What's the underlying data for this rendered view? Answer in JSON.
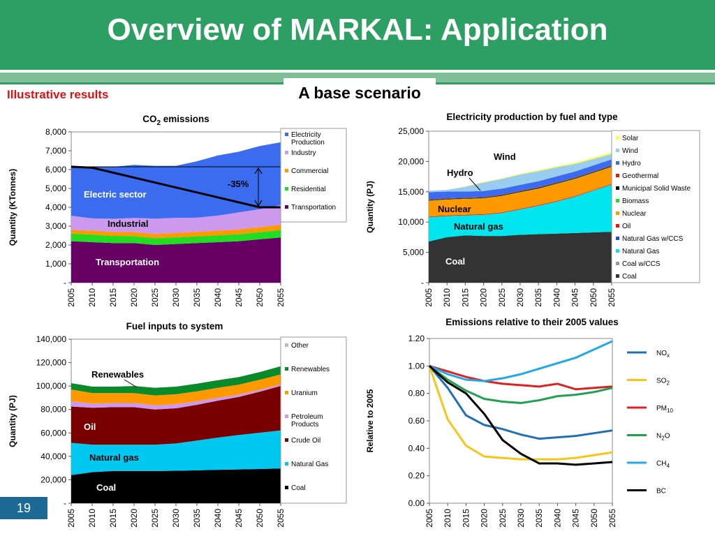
{
  "slide": {
    "title": "Overview of MARKAL: Application",
    "subtitle": "Illustrative results",
    "scenario": "A base scenario",
    "page_number": "19"
  },
  "colors": {
    "header_green": "#2e9f62",
    "subtitle_red": "#e01010",
    "page_badge_blue": "#1d6a96"
  },
  "chart_data": [
    {
      "id": "co2",
      "type": "area",
      "title": "CO",
      "title_sub": "2",
      "title_rest": " emissions",
      "ylabel": "Quantity (KTonnes)",
      "x": [
        "2005",
        "2010",
        "2015",
        "2020",
        "2025",
        "2030",
        "2035",
        "2040",
        "2045",
        "2050",
        "2055"
      ],
      "ylim": [
        0,
        8000
      ],
      "yticks": [
        0,
        1000,
        2000,
        3000,
        4000,
        5000,
        6000,
        7000,
        8000
      ],
      "ytick_labels": [
        "-",
        "1,000",
        "2,000",
        "3,000",
        "4,000",
        "5,000",
        "6,000",
        "7,000",
        "8,000"
      ],
      "series": [
        {
          "name": "Transportation",
          "color": "#660066",
          "values": [
            2200,
            2150,
            2100,
            2100,
            2000,
            2050,
            2100,
            2150,
            2200,
            2300,
            2400
          ]
        },
        {
          "name": "Residential",
          "color": "#22dd22",
          "values": [
            400,
            400,
            380,
            370,
            360,
            360,
            360,
            360,
            370,
            380,
            390
          ]
        },
        {
          "name": "Commercial",
          "color": "#ff9900",
          "values": [
            200,
            210,
            210,
            215,
            220,
            230,
            240,
            250,
            260,
            270,
            280
          ]
        },
        {
          "name": "Industry",
          "color": "#cc99ee",
          "values": [
            750,
            650,
            700,
            750,
            820,
            800,
            750,
            800,
            900,
            950,
            1050
          ]
        },
        {
          "name": "Electricity Production",
          "color": "#3b6cf0",
          "values": [
            2600,
            2740,
            2760,
            2815,
            2800,
            2760,
            2990,
            3190,
            3220,
            3350,
            3330
          ]
        }
      ],
      "legend": [
        "Electricity Production",
        "Industry",
        "Commercial",
        "Residential",
        "Transportation"
      ],
      "reference_line": {
        "values": [
          6150,
          6100,
          null,
          null,
          null,
          null,
          null,
          null,
          null,
          4000,
          4000
        ],
        "hline": 6150
      },
      "annotations": {
        "electric": "Electric sector",
        "industrial": "Industrial",
        "transportation": "Transportation",
        "reduction": "-35%"
      }
    },
    {
      "id": "elec",
      "type": "area",
      "title": "Electricity production by fuel and type",
      "ylabel": "Quantity (PJ)",
      "x": [
        "2005",
        "2010",
        "2015",
        "2020",
        "2025",
        "2030",
        "2035",
        "2040",
        "2045",
        "2050",
        "2055"
      ],
      "ylim": [
        0,
        25000
      ],
      "yticks": [
        0,
        5000,
        10000,
        15000,
        20000,
        25000
      ],
      "ytick_labels": [
        "-",
        "5,000",
        "10,000",
        "15,000",
        "20,000",
        "25,000"
      ],
      "series": [
        {
          "name": "Coal",
          "color": "#333333",
          "values": [
            6800,
            7500,
            7800,
            7700,
            7700,
            7900,
            8000,
            8100,
            8200,
            8300,
            8400
          ]
        },
        {
          "name": "Coal w/CCS",
          "color": "#999999",
          "values": [
            0,
            0,
            0,
            0,
            0,
            0,
            0,
            0,
            0,
            0,
            0
          ]
        },
        {
          "name": "Natural Gas",
          "color": "#00e5ee",
          "values": [
            4000,
            3500,
            3300,
            3500,
            3800,
            4200,
            4700,
            5300,
            6000,
            6900,
            7800
          ]
        },
        {
          "name": "Natural Gas w/CCS",
          "color": "#1f4fd8",
          "values": [
            0,
            0,
            0,
            0,
            0,
            0,
            0,
            0,
            0,
            0,
            0
          ]
        },
        {
          "name": "Oil",
          "color": "#ee1111",
          "values": [
            100,
            100,
            100,
            100,
            100,
            100,
            100,
            100,
            100,
            100,
            100
          ]
        },
        {
          "name": "Nuclear",
          "color": "#ff9900",
          "values": [
            2600,
            2600,
            2600,
            2600,
            2700,
            2700,
            2700,
            2800,
            2800,
            2800,
            2800
          ]
        },
        {
          "name": "Biomass",
          "color": "#22dd22",
          "values": [
            50,
            50,
            50,
            50,
            50,
            60,
            60,
            60,
            60,
            60,
            60
          ]
        },
        {
          "name": "Municipal Solid Waste",
          "color": "#000000",
          "values": [
            80,
            80,
            80,
            80,
            80,
            90,
            90,
            90,
            90,
            90,
            90
          ]
        },
        {
          "name": "Geothermal",
          "color": "#cc2222",
          "values": [
            100,
            100,
            100,
            100,
            100,
            100,
            100,
            100,
            100,
            100,
            100
          ]
        },
        {
          "name": "Hydro",
          "color": "#3b6cf0",
          "values": [
            1200,
            1100,
            1000,
            1000,
            1000,
            1000,
            1000,
            1000,
            1000,
            1000,
            1000
          ]
        },
        {
          "name": "Wind",
          "color": "#99ccee",
          "values": [
            250,
            300,
            800,
            1400,
            1600,
            1700,
            1650,
            1500,
            1250,
            1050,
            900
          ]
        },
        {
          "name": "Solar",
          "color": "#ffff44",
          "values": [
            0,
            0,
            50,
            80,
            100,
            120,
            150,
            170,
            200,
            230,
            270
          ]
        }
      ],
      "legend": [
        "Solar",
        "Wind",
        "Hydro",
        "Geothermal",
        "Municipal Solid Waste",
        "Biomass",
        "Nuclear",
        "Oil",
        "Natural Gas w/CCS",
        "Natural Gas",
        "Coal w/CCS",
        "Coal"
      ],
      "annotations": {
        "wind": "Wind",
        "hydro": "Hydro",
        "nuclear": "Nuclear",
        "gas": "Natural gas",
        "coal": "Coal"
      }
    },
    {
      "id": "fuel",
      "type": "area",
      "title": "Fuel inputs to system",
      "ylabel": "Quantity (PJ)",
      "x": [
        "2005",
        "2010",
        "2015",
        "2020",
        "2025",
        "2030",
        "2035",
        "2040",
        "2045",
        "2050",
        "2055"
      ],
      "ylim": [
        0,
        140000
      ],
      "yticks": [
        0,
        20000,
        40000,
        60000,
        80000,
        100000,
        120000,
        140000
      ],
      "ytick_labels": [
        "-",
        "20,000",
        "40,000",
        "60,000",
        "80,000",
        "100,000",
        "120,000",
        "140,000"
      ],
      "series": [
        {
          "name": "Coal",
          "color": "#000000",
          "values": [
            24000,
            26500,
            27500,
            27500,
            27500,
            27700,
            28100,
            28500,
            28800,
            29200,
            29600
          ]
        },
        {
          "name": "Natural Gas",
          "color": "#00c8f0",
          "values": [
            27500,
            23500,
            22500,
            22500,
            22500,
            23300,
            25400,
            27500,
            29400,
            31000,
            32500
          ]
        },
        {
          "name": "Crude Oil",
          "color": "#7a0000",
          "values": [
            31000,
            31500,
            32000,
            32000,
            30000,
            30000,
            30500,
            31500,
            32500,
            35000,
            38000
          ]
        },
        {
          "name": "Petroleum Products",
          "color": "#cc99ee",
          "values": [
            4500,
            3500,
            3500,
            3500,
            3500,
            3500,
            3000,
            2500,
            2000,
            1700,
            1300
          ]
        },
        {
          "name": "Uranium",
          "color": "#ff9900",
          "values": [
            10000,
            9000,
            8500,
            8500,
            8500,
            8500,
            8500,
            8500,
            8500,
            8500,
            8500
          ]
        },
        {
          "name": "Renewables",
          "color": "#0a8a2a",
          "values": [
            5500,
            5500,
            5500,
            6000,
            6500,
            6500,
            6500,
            6500,
            6500,
            6500,
            7000
          ]
        },
        {
          "name": "Other",
          "color": "#bbbbbb",
          "values": [
            0,
            0,
            0,
            0,
            0,
            0,
            0,
            0,
            0,
            0,
            0
          ]
        }
      ],
      "legend": [
        "Other",
        "Renewables",
        "Uranium",
        "Petroleum Products",
        "Crude Oil",
        "Natural Gas",
        "Coal"
      ],
      "annotations": {
        "renewables": "Renewables",
        "oil": "Oil",
        "gas": "Natural gas",
        "coal": "Coal"
      }
    },
    {
      "id": "emis",
      "type": "line",
      "title": "Emissions relative to their 2005 values",
      "ylabel": "Relative to 2005",
      "x": [
        "2005",
        "2010",
        "2015",
        "2020",
        "2025",
        "2030",
        "2035",
        "2040",
        "2045",
        "2050",
        "2055"
      ],
      "ylim": [
        0,
        1.2
      ],
      "yticks": [
        0,
        0.2,
        0.4,
        0.6,
        0.8,
        1.0,
        1.2
      ],
      "ytick_labels": [
        "0.00",
        "0.20",
        "0.40",
        "0.60",
        "0.80",
        "1.00",
        "1.20"
      ],
      "series": [
        {
          "name": "NO",
          "sub": "x",
          "color": "#1f6fb5",
          "values": [
            1.0,
            0.84,
            0.64,
            0.57,
            0.54,
            0.5,
            0.47,
            0.48,
            0.49,
            0.51,
            0.53
          ]
        },
        {
          "name": "SO",
          "sub": "2",
          "color": "#f5c518",
          "values": [
            1.0,
            0.61,
            0.42,
            0.34,
            0.33,
            0.32,
            0.32,
            0.32,
            0.33,
            0.35,
            0.37
          ]
        },
        {
          "name": "PM",
          "sub": "10",
          "color": "#e02020",
          "values": [
            1.0,
            0.96,
            0.92,
            0.89,
            0.87,
            0.86,
            0.85,
            0.87,
            0.83,
            0.84,
            0.85
          ]
        },
        {
          "name": "N",
          "sub": "2",
          "rest": "O",
          "color": "#20a050",
          "values": [
            1.0,
            0.9,
            0.82,
            0.76,
            0.74,
            0.73,
            0.75,
            0.78,
            0.79,
            0.81,
            0.84
          ]
        },
        {
          "name": "CH",
          "sub": "4",
          "color": "#20a8e8",
          "values": [
            1.0,
            0.94,
            0.9,
            0.89,
            0.91,
            0.94,
            0.98,
            1.02,
            1.06,
            1.12,
            1.18
          ]
        },
        {
          "name": "BC",
          "sub": "",
          "color": "#000000",
          "values": [
            1.0,
            0.88,
            0.8,
            0.65,
            0.46,
            0.36,
            0.29,
            0.29,
            0.28,
            0.29,
            0.3
          ]
        }
      ]
    }
  ]
}
